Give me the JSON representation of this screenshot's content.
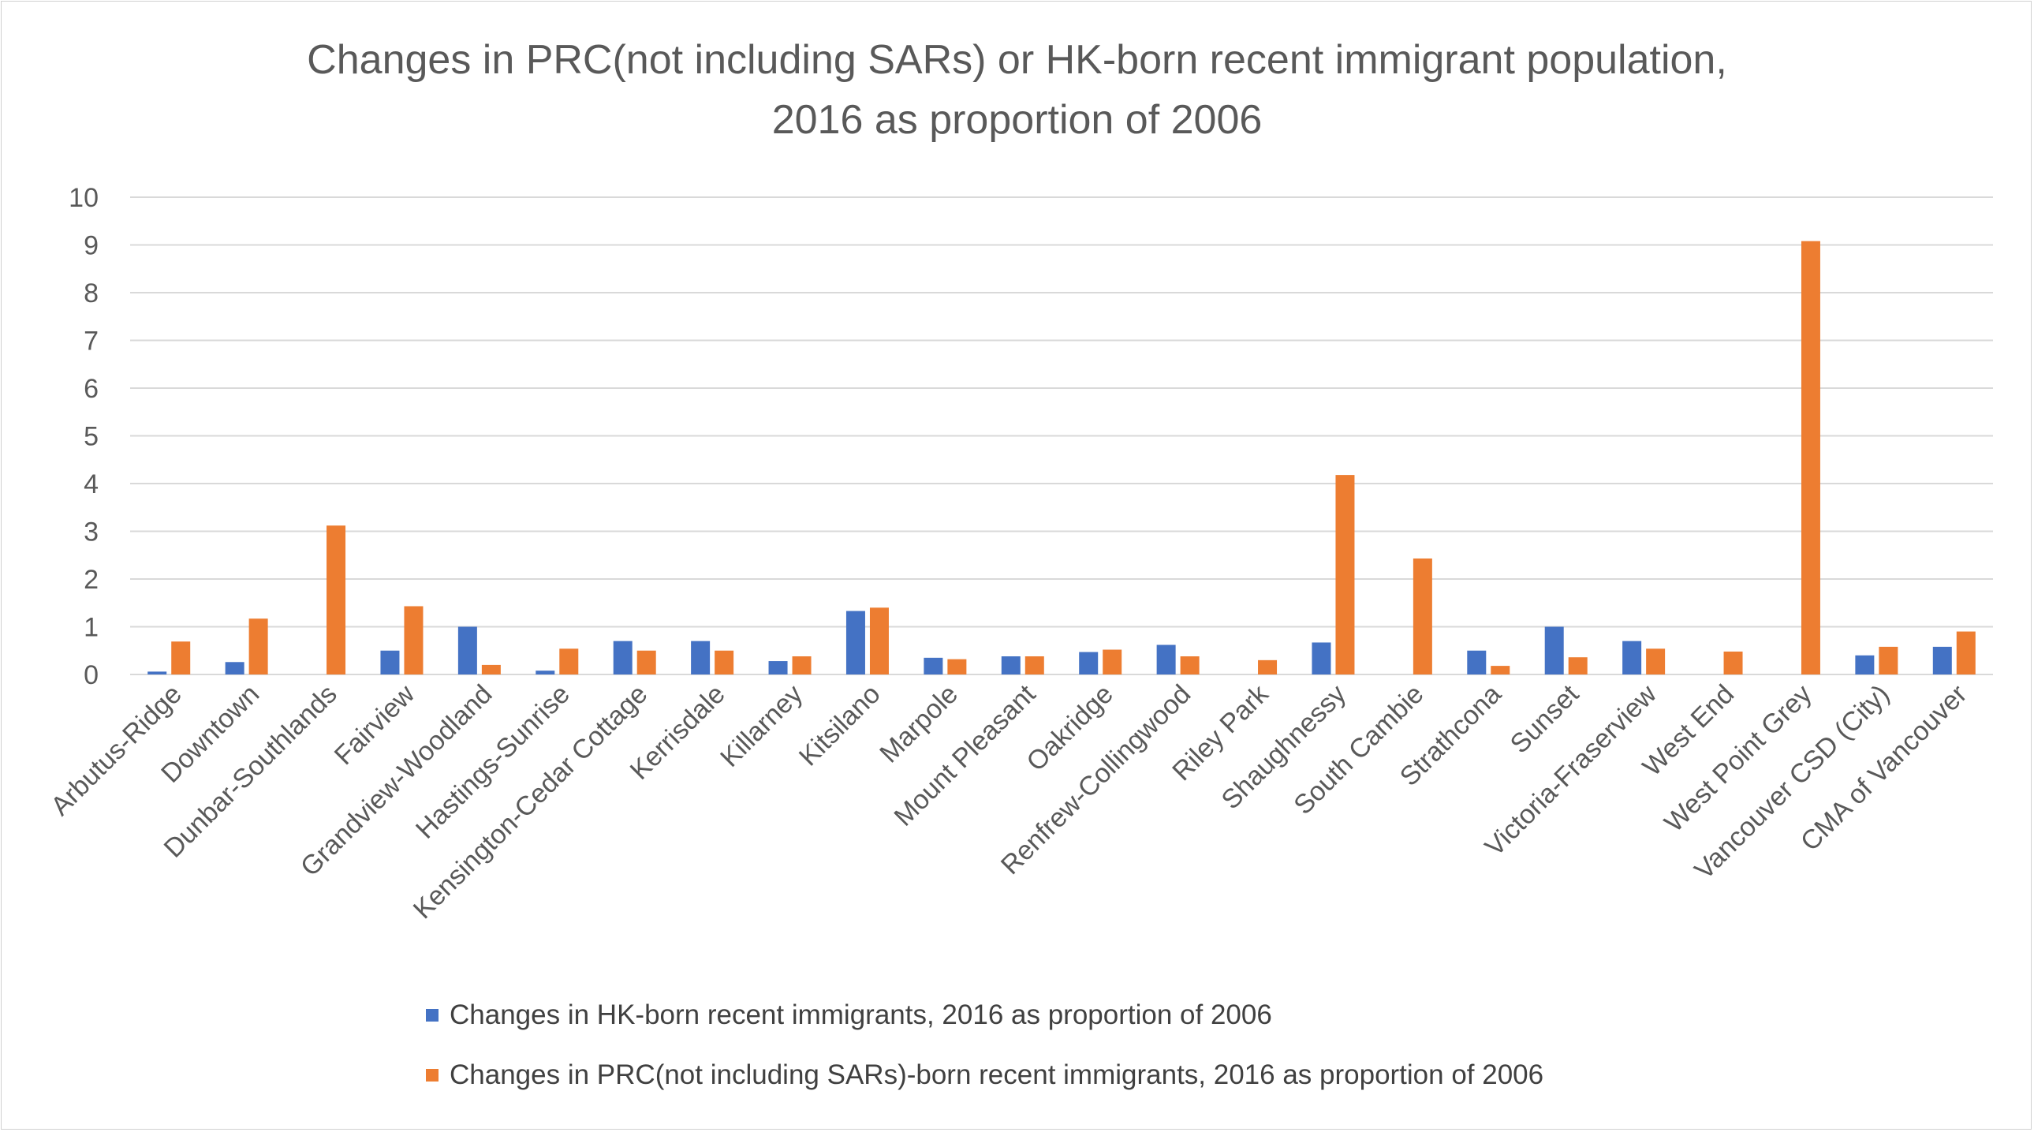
{
  "chart_data": {
    "type": "bar",
    "title": "Changes in PRC(not including SARs) or HK-born recent immigrant population, 2016 as proportion of 2006",
    "title_lines": [
      "Changes in PRC(not including SARs) or HK-born recent immigrant population,",
      "2016 as proportion of 2006"
    ],
    "xlabel": "",
    "ylabel": "",
    "ylim": [
      0,
      10
    ],
    "yticks": [
      0,
      1,
      2,
      3,
      4,
      5,
      6,
      7,
      8,
      9,
      10
    ],
    "grid": true,
    "legend_position": "bottom",
    "categories": [
      "Arbutus-Ridge",
      "Downtown",
      "Dunbar-Southlands",
      "Fairview",
      "Grandview-Woodland",
      "Hastings-Sunrise",
      "Kensington-Cedar Cottage",
      "Kerrisdale",
      "Killarney",
      "Kitsilano",
      "Marpole",
      "Mount Pleasant",
      "Oakridge",
      "Renfrew-Collingwood",
      "Riley Park",
      "Shaughnessy",
      "South Cambie",
      "Strathcona",
      "Sunset",
      "Victoria-Fraserview",
      "West End",
      "West Point Grey",
      "Vancouver CSD (City)",
      "CMA of Vancouver"
    ],
    "series": [
      {
        "name": "Changes in HK-born recent immigrants, 2016 as proportion of 2006",
        "color": "#4472C4",
        "values": [
          0.06,
          0.26,
          0,
          0.5,
          1.0,
          0.08,
          0.7,
          0.7,
          0.28,
          1.33,
          0.35,
          0.38,
          0.47,
          0.62,
          0,
          0.67,
          0,
          0.5,
          1.0,
          0.7,
          0,
          0,
          0.4,
          0.58
        ]
      },
      {
        "name": "Changes in PRC(not including SARs)-born recent immigrants, 2016 as proportion of 2006",
        "color": "#ED7D31",
        "values": [
          0.69,
          1.17,
          3.12,
          1.43,
          0.2,
          0.54,
          0.5,
          0.5,
          0.38,
          1.4,
          0.32,
          0.38,
          0.52,
          0.38,
          0.3,
          4.18,
          2.43,
          0.18,
          0.36,
          0.54,
          0.48,
          9.08,
          0.58,
          0.9
        ]
      }
    ]
  }
}
